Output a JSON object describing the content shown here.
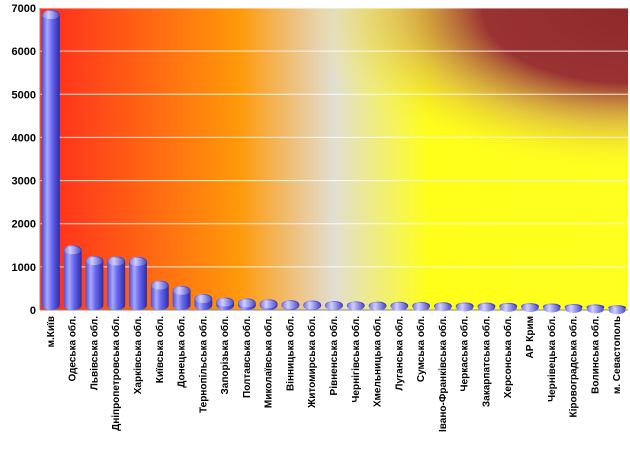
{
  "chart_data": {
    "type": "bar",
    "title": "",
    "xlabel": "",
    "ylabel": "",
    "ylim": [
      0,
      7000
    ],
    "yticks": [
      "0",
      "1000",
      "2000",
      "3000",
      "4000",
      "5000",
      "6000",
      "7000"
    ],
    "grid": true,
    "categories": [
      "м.Київ",
      "Одеська обл.",
      "Львівська обл.",
      "Дніпропетровська обл.",
      "Харківська обл.",
      "Київська обл.",
      "Донецька обл.",
      "Тернопільська обл.",
      "Запорізька обл.",
      "Полтавська обл.",
      "Миколаївська обл.",
      "Вінницька обл.",
      "Житомирська обл.",
      "Рівненська обл.",
      "Чернігівська обл.",
      "Хмельницька обл.",
      "Луганська обл.",
      "Сумська обл.",
      "Івано-Франківська обл.",
      "Черкаська обл.",
      "Закарпатська обл.",
      "Херсонська обл.",
      "АР Крим",
      "Чернівецька обл.",
      "Кіровоградська обл.",
      "Волинська обл.",
      "м. Севастополь"
    ],
    "values": [
      6950,
      1500,
      1250,
      1240,
      1230,
      680,
      560,
      370,
      290,
      270,
      250,
      230,
      220,
      210,
      200,
      195,
      190,
      185,
      180,
      175,
      170,
      165,
      160,
      150,
      140,
      130,
      110
    ],
    "colors": {
      "bar_light": "#b8b8ff",
      "bar_mid": "#6a6af0",
      "bar_dark": "#2a2aa8",
      "bg_red": "#ff2a1e",
      "bg_orange": "#ff9a0a",
      "bg_yellow": "#ffff1a",
      "bg_grey": "#e4e0cc",
      "bg_maroon": "#9a3030"
    }
  }
}
